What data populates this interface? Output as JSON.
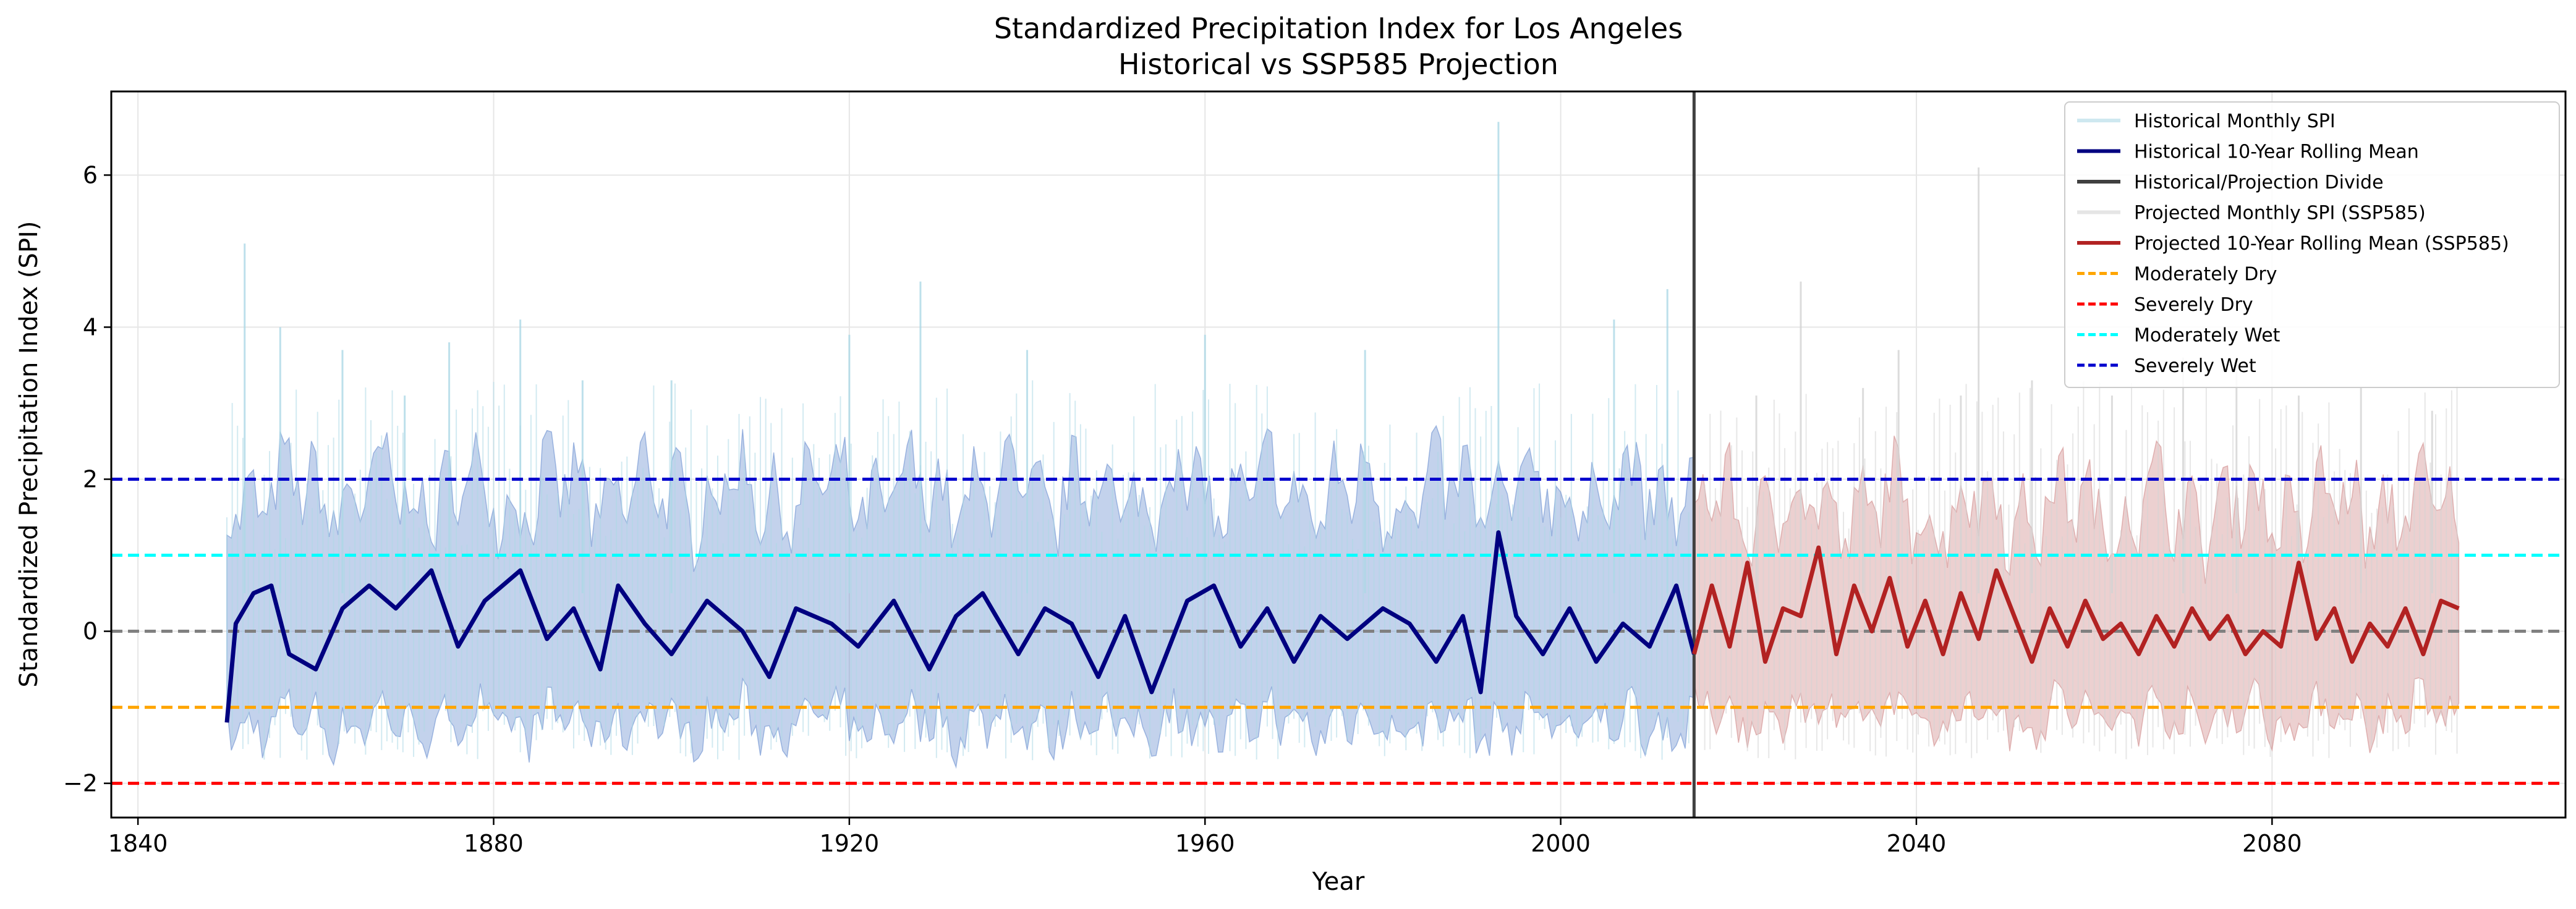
{
  "chart_data": {
    "type": "line",
    "title": "Standardized Precipitation Index for Los Angeles",
    "subtitle": "Historical vs SSP585 Projection",
    "xlabel": "Year",
    "ylabel": "Standardized Precipitation Index (SPI)",
    "xlim": [
      1837,
      2113
    ],
    "ylim": [
      -2.45,
      7.1
    ],
    "x_ticks": [
      1840,
      1880,
      1920,
      1960,
      2000,
      2040,
      2080
    ],
    "y_ticks": [
      -2,
      0,
      2,
      4,
      6
    ],
    "y_tick_labels": [
      "−2",
      "0",
      "2",
      "4",
      "6"
    ],
    "grid": true,
    "legend_position": "top-right",
    "divide_year": 2015,
    "series": [
      {
        "name": "Historical Monthly SPI",
        "style": "line",
        "color": "#add8e6",
        "x_range": [
          1850,
          2015
        ],
        "x": [
          1852,
          1856,
          1863,
          1870,
          1875,
          1883,
          1890,
          1900,
          1920,
          1928,
          1940,
          1960,
          1978,
          1993,
          2006,
          2012
        ],
        "y": [
          5.1,
          4.0,
          3.7,
          3.1,
          3.8,
          4.1,
          3.3,
          3.3,
          3.9,
          4.6,
          3.7,
          3.9,
          3.7,
          6.7,
          4.1,
          4.5
        ]
      },
      {
        "name": "Historical 10-Year Rolling Mean",
        "style": "line",
        "color": "#000080",
        "x": [
          1850,
          1851,
          1853,
          1855,
          1857,
          1860,
          1863,
          1866,
          1869,
          1873,
          1876,
          1879,
          1883,
          1886,
          1889,
          1892,
          1894,
          1897,
          1900,
          1904,
          1908,
          1911,
          1914,
          1918,
          1921,
          1925,
          1929,
          1932,
          1935,
          1939,
          1942,
          1945,
          1948,
          1951,
          1954,
          1958,
          1961,
          1964,
          1967,
          1970,
          1973,
          1976,
          1980,
          1983,
          1986,
          1989,
          1991,
          1993,
          1995,
          1998,
          2001,
          2004,
          2007,
          2010,
          2013,
          2015
        ],
        "y": [
          -1.2,
          0.1,
          0.5,
          0.6,
          -0.3,
          -0.5,
          0.3,
          0.6,
          0.3,
          0.8,
          -0.2,
          0.4,
          0.8,
          -0.1,
          0.3,
          -0.5,
          0.6,
          0.1,
          -0.3,
          0.4,
          0.0,
          -0.6,
          0.3,
          0.1,
          -0.2,
          0.4,
          -0.5,
          0.2,
          0.5,
          -0.3,
          0.3,
          0.1,
          -0.6,
          0.2,
          -0.8,
          0.4,
          0.6,
          -0.2,
          0.3,
          -0.4,
          0.2,
          -0.1,
          0.3,
          0.1,
          -0.4,
          0.2,
          -0.8,
          1.3,
          0.2,
          -0.3,
          0.3,
          -0.4,
          0.1,
          -0.2,
          0.6,
          -0.3
        ]
      },
      {
        "name": "Historical/Projection Divide",
        "style": "vline",
        "color": "#404040",
        "x": [
          2015
        ]
      },
      {
        "name": "Projected Monthly SPI (SSP585)",
        "style": "line",
        "color": "#d3d3d3",
        "x_range": [
          2015,
          2101
        ],
        "x": [
          2022,
          2027,
          2034,
          2038,
          2045,
          2047,
          2053,
          2062,
          2070,
          2076,
          2083,
          2090,
          2098
        ],
        "y": [
          3.1,
          4.6,
          3.2,
          3.7,
          3.1,
          6.1,
          3.3,
          3.1,
          3.6,
          3.5,
          3.1,
          3.2,
          2.9
        ]
      },
      {
        "name": "Projected 10-Year Rolling Mean (SSP585)",
        "style": "line",
        "color": "#b22222",
        "x": [
          2015,
          2017,
          2019,
          2021,
          2023,
          2025,
          2027,
          2029,
          2031,
          2033,
          2035,
          2037,
          2039,
          2041,
          2043,
          2045,
          2047,
          2049,
          2051,
          2053,
          2055,
          2057,
          2059,
          2061,
          2063,
          2065,
          2067,
          2069,
          2071,
          2073,
          2075,
          2077,
          2079,
          2081,
          2083,
          2085,
          2087,
          2089,
          2091,
          2093,
          2095,
          2097,
          2099,
          2101
        ],
        "y": [
          -0.3,
          0.6,
          -0.2,
          0.9,
          -0.4,
          0.3,
          0.2,
          1.1,
          -0.3,
          0.6,
          0.0,
          0.7,
          -0.2,
          0.4,
          -0.3,
          0.5,
          -0.1,
          0.8,
          0.2,
          -0.4,
          0.3,
          -0.2,
          0.4,
          -0.1,
          0.1,
          -0.3,
          0.2,
          -0.2,
          0.3,
          -0.1,
          0.2,
          -0.3,
          0.0,
          -0.2,
          0.9,
          -0.1,
          0.3,
          -0.4,
          0.1,
          -0.2,
          0.3,
          -0.3,
          0.4,
          0.3
        ]
      },
      {
        "name": "Moderately Dry",
        "style": "hline-dashed",
        "color": "#ffa500",
        "y": [
          -1
        ]
      },
      {
        "name": "Severely Dry",
        "style": "hline-dashed",
        "color": "#ff0000",
        "y": [
          -2
        ]
      },
      {
        "name": "Moderately Wet",
        "style": "hline-dashed",
        "color": "#00ffff",
        "y": [
          1
        ]
      },
      {
        "name": "Severely Wet",
        "style": "hline-dashed",
        "color": "#0000cd",
        "y": [
          2
        ]
      }
    ],
    "reference_lines": [
      {
        "y": 0,
        "style": "dashed",
        "color": "#808080"
      }
    ],
    "bands": [
      {
        "x_range": [
          1850,
          2015
        ],
        "y_range": [
          -1.2,
          1.8
        ],
        "color": "#6a8fd0"
      },
      {
        "x_range": [
          2015,
          2101
        ],
        "y_range": [
          -1.1,
          1.6
        ],
        "color": "#d08a8a"
      }
    ]
  }
}
